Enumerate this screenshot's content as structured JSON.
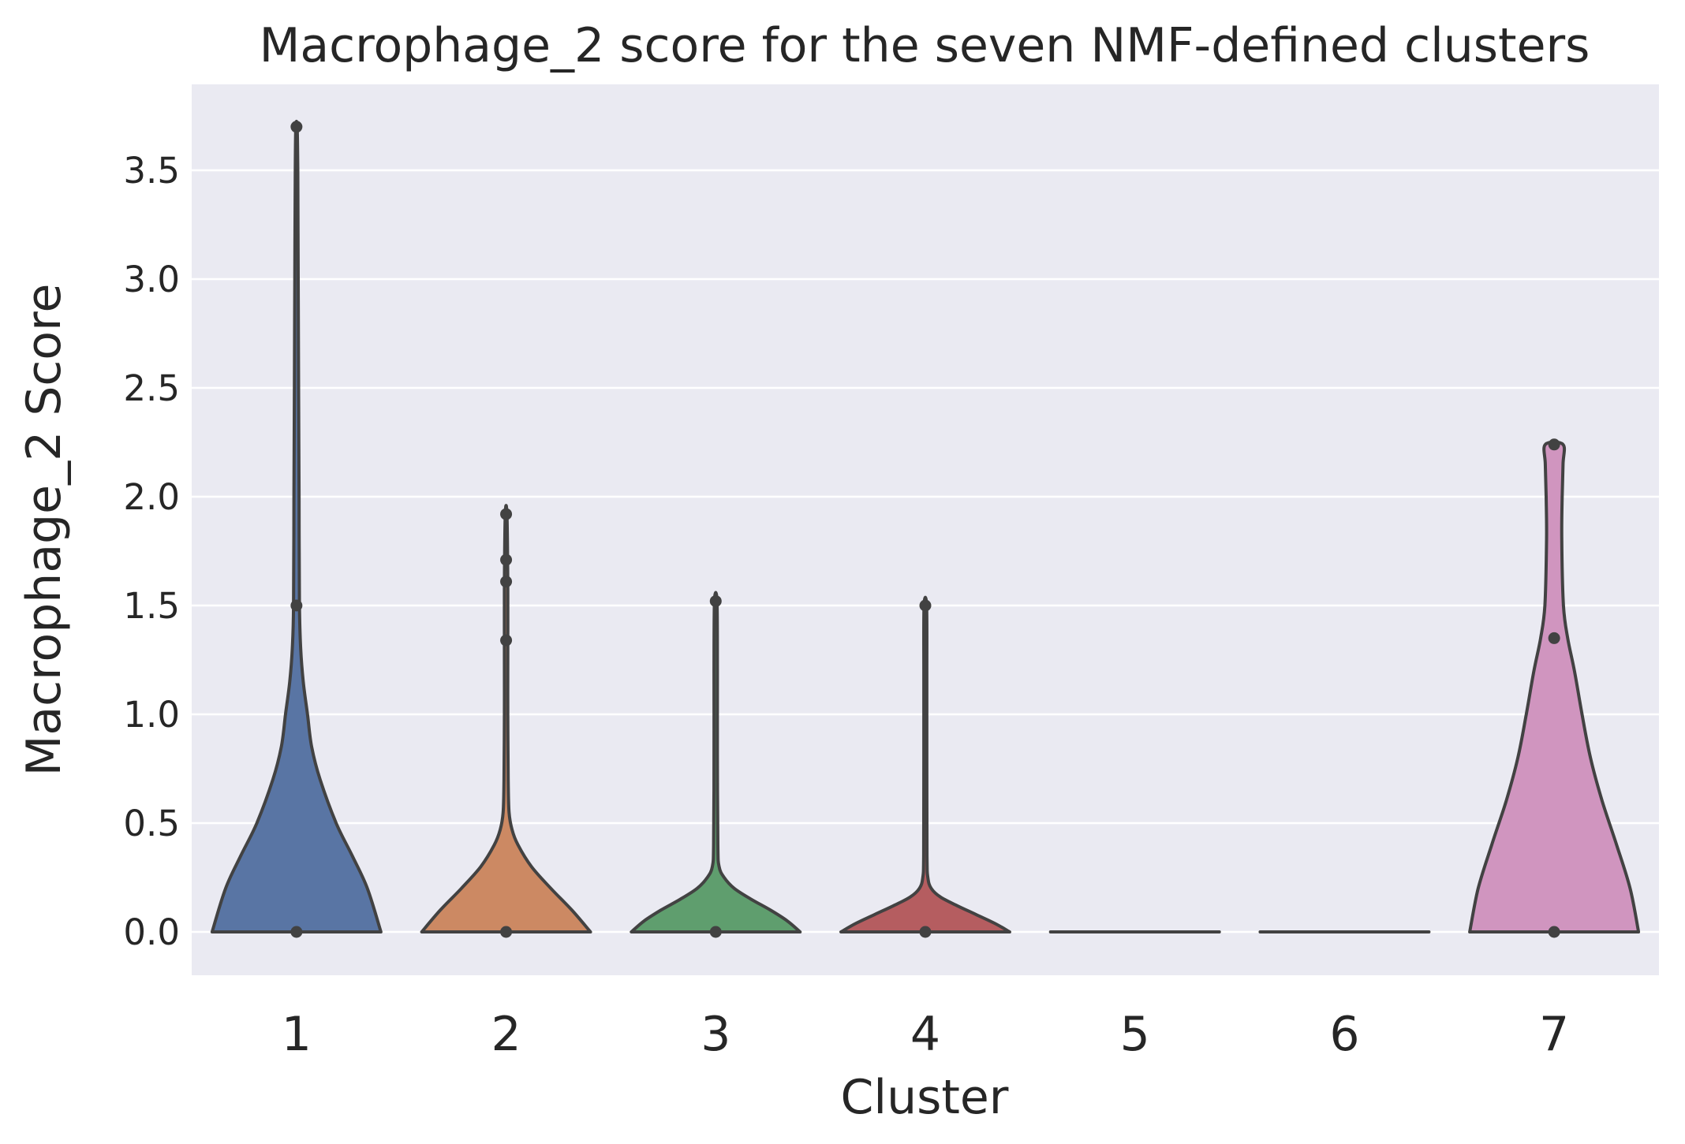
{
  "chart_data": {
    "type": "violin",
    "title": "Macrophage_2 score for the seven NMF-defined clusters",
    "xlabel": "Cluster",
    "ylabel": "Macrophage_2 Score",
    "categories": [
      "1",
      "2",
      "3",
      "4",
      "5",
      "6",
      "7"
    ],
    "yticks": [
      "0.0",
      "0.5",
      "1.0",
      "1.5",
      "2.0",
      "2.5",
      "3.0",
      "3.5"
    ],
    "ytick_values": [
      0,
      0.5,
      1.0,
      1.5,
      2.0,
      2.5,
      3.0,
      3.5
    ],
    "ylim": [
      -0.2,
      3.85
    ],
    "grid": true,
    "background": "#eaeaf2",
    "edge_color": "#424242",
    "violins": [
      {
        "category": "1",
        "color": "#5975a4",
        "points": [
          0,
          1.5,
          3.7
        ],
        "profile": [
          [
            0,
            1.0
          ],
          [
            0.2,
            0.84
          ],
          [
            0.35,
            0.66
          ],
          [
            0.5,
            0.47
          ],
          [
            0.7,
            0.28
          ],
          [
            0.85,
            0.18
          ],
          [
            1.0,
            0.13
          ],
          [
            1.15,
            0.08
          ],
          [
            1.3,
            0.05
          ],
          [
            1.5,
            0.035
          ],
          [
            2.0,
            0.03
          ],
          [
            2.5,
            0.025
          ],
          [
            3.0,
            0.02
          ],
          [
            3.5,
            0.015
          ],
          [
            3.7,
            0.008
          ]
        ]
      },
      {
        "category": "2",
        "color": "#cc8963",
        "points": [
          0,
          1.34,
          1.61,
          1.71,
          1.92
        ],
        "profile": [
          [
            0,
            1.0
          ],
          [
            0.1,
            0.78
          ],
          [
            0.2,
            0.53
          ],
          [
            0.3,
            0.3
          ],
          [
            0.4,
            0.14
          ],
          [
            0.47,
            0.07
          ],
          [
            0.55,
            0.035
          ],
          [
            0.7,
            0.025
          ],
          [
            1.0,
            0.02
          ],
          [
            1.3,
            0.02
          ],
          [
            1.6,
            0.02
          ],
          [
            1.92,
            0.01
          ]
        ]
      },
      {
        "category": "3",
        "color": "#5f9e6e",
        "points": [
          0,
          1.52
        ],
        "profile": [
          [
            0,
            1.0
          ],
          [
            0.05,
            0.85
          ],
          [
            0.1,
            0.65
          ],
          [
            0.15,
            0.42
          ],
          [
            0.2,
            0.22
          ],
          [
            0.25,
            0.1
          ],
          [
            0.3,
            0.04
          ],
          [
            0.4,
            0.025
          ],
          [
            0.8,
            0.02
          ],
          [
            1.2,
            0.02
          ],
          [
            1.52,
            0.015
          ]
        ]
      },
      {
        "category": "4",
        "color": "#b55d60",
        "points": [
          0,
          1.5
        ],
        "profile": [
          [
            0,
            1.0
          ],
          [
            0.04,
            0.82
          ],
          [
            0.08,
            0.6
          ],
          [
            0.12,
            0.38
          ],
          [
            0.16,
            0.18
          ],
          [
            0.2,
            0.07
          ],
          [
            0.25,
            0.03
          ],
          [
            0.35,
            0.02
          ],
          [
            0.8,
            0.018
          ],
          [
            1.2,
            0.018
          ],
          [
            1.5,
            0.015
          ]
        ]
      },
      {
        "category": "5",
        "color": "#857aab",
        "points": [],
        "profile": [
          [
            0,
            1.0
          ]
        ]
      },
      {
        "category": "6",
        "color": "#8d7866",
        "points": [],
        "profile": [
          [
            0,
            1.0
          ]
        ]
      },
      {
        "category": "7",
        "color": "#d095bf",
        "points": [
          0,
          1.35,
          2.24
        ],
        "profile": [
          [
            0,
            1.0
          ],
          [
            0.2,
            0.9
          ],
          [
            0.4,
            0.74
          ],
          [
            0.6,
            0.57
          ],
          [
            0.8,
            0.43
          ],
          [
            1.0,
            0.33
          ],
          [
            1.2,
            0.24
          ],
          [
            1.35,
            0.16
          ],
          [
            1.5,
            0.11
          ],
          [
            1.8,
            0.09
          ],
          [
            2.0,
            0.095
          ],
          [
            2.15,
            0.105
          ],
          [
            2.24,
            0.105
          ]
        ]
      }
    ]
  }
}
